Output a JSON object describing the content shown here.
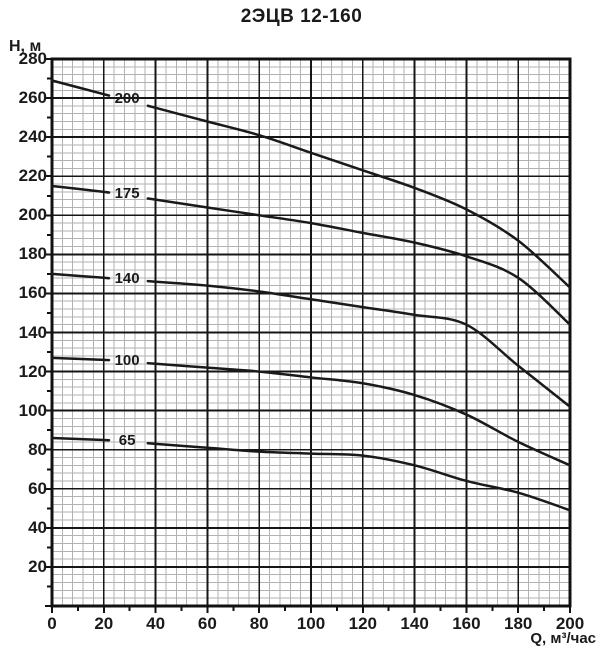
{
  "title": "2ЭЦВ 12-160",
  "axes": {
    "y_label": "Н, м",
    "x_label": "Q, м³/час",
    "y_ticks": [
      280,
      260,
      240,
      220,
      200,
      180,
      160,
      140,
      120,
      100,
      80,
      60,
      40,
      20
    ],
    "x_ticks": [
      0,
      20,
      40,
      60,
      80,
      100,
      120,
      140,
      160,
      180,
      200
    ]
  },
  "colors": {
    "curve": "#1a1a1a",
    "major_grid": "#161616",
    "minor_grid": "#b2b2b2",
    "frame": "#111111",
    "background": "#ffffff"
  },
  "chart_data": {
    "type": "line",
    "title": "2ЭЦВ 12-160",
    "xlabel": "Q, м³/час",
    "ylabel": "Н, м",
    "xlim": [
      0,
      200
    ],
    "ylim": [
      0,
      280
    ],
    "grid": "major every 20 units, minor every 4 units, ticks every 10",
    "legend_position": "inline curve labels",
    "x": [
      0,
      20,
      40,
      60,
      80,
      100,
      120,
      140,
      160,
      180,
      200
    ],
    "series": [
      {
        "name": "200",
        "values": [
          269,
          262,
          255,
          248,
          241,
          232,
          223,
          214,
          203,
          187,
          163
        ]
      },
      {
        "name": "175",
        "values": [
          215,
          212,
          208,
          204,
          200,
          196,
          191,
          186,
          179,
          168,
          144
        ]
      },
      {
        "name": "140",
        "values": [
          170,
          168,
          166,
          164,
          161,
          157,
          153,
          149,
          144,
          123,
          102
        ]
      },
      {
        "name": "100",
        "values": [
          127,
          126,
          124,
          122,
          120,
          117,
          114,
          108,
          98,
          84,
          72
        ]
      },
      {
        "name": "65",
        "values": [
          86,
          85,
          83,
          81,
          79,
          78,
          77,
          72,
          64,
          58,
          49
        ]
      }
    ]
  }
}
